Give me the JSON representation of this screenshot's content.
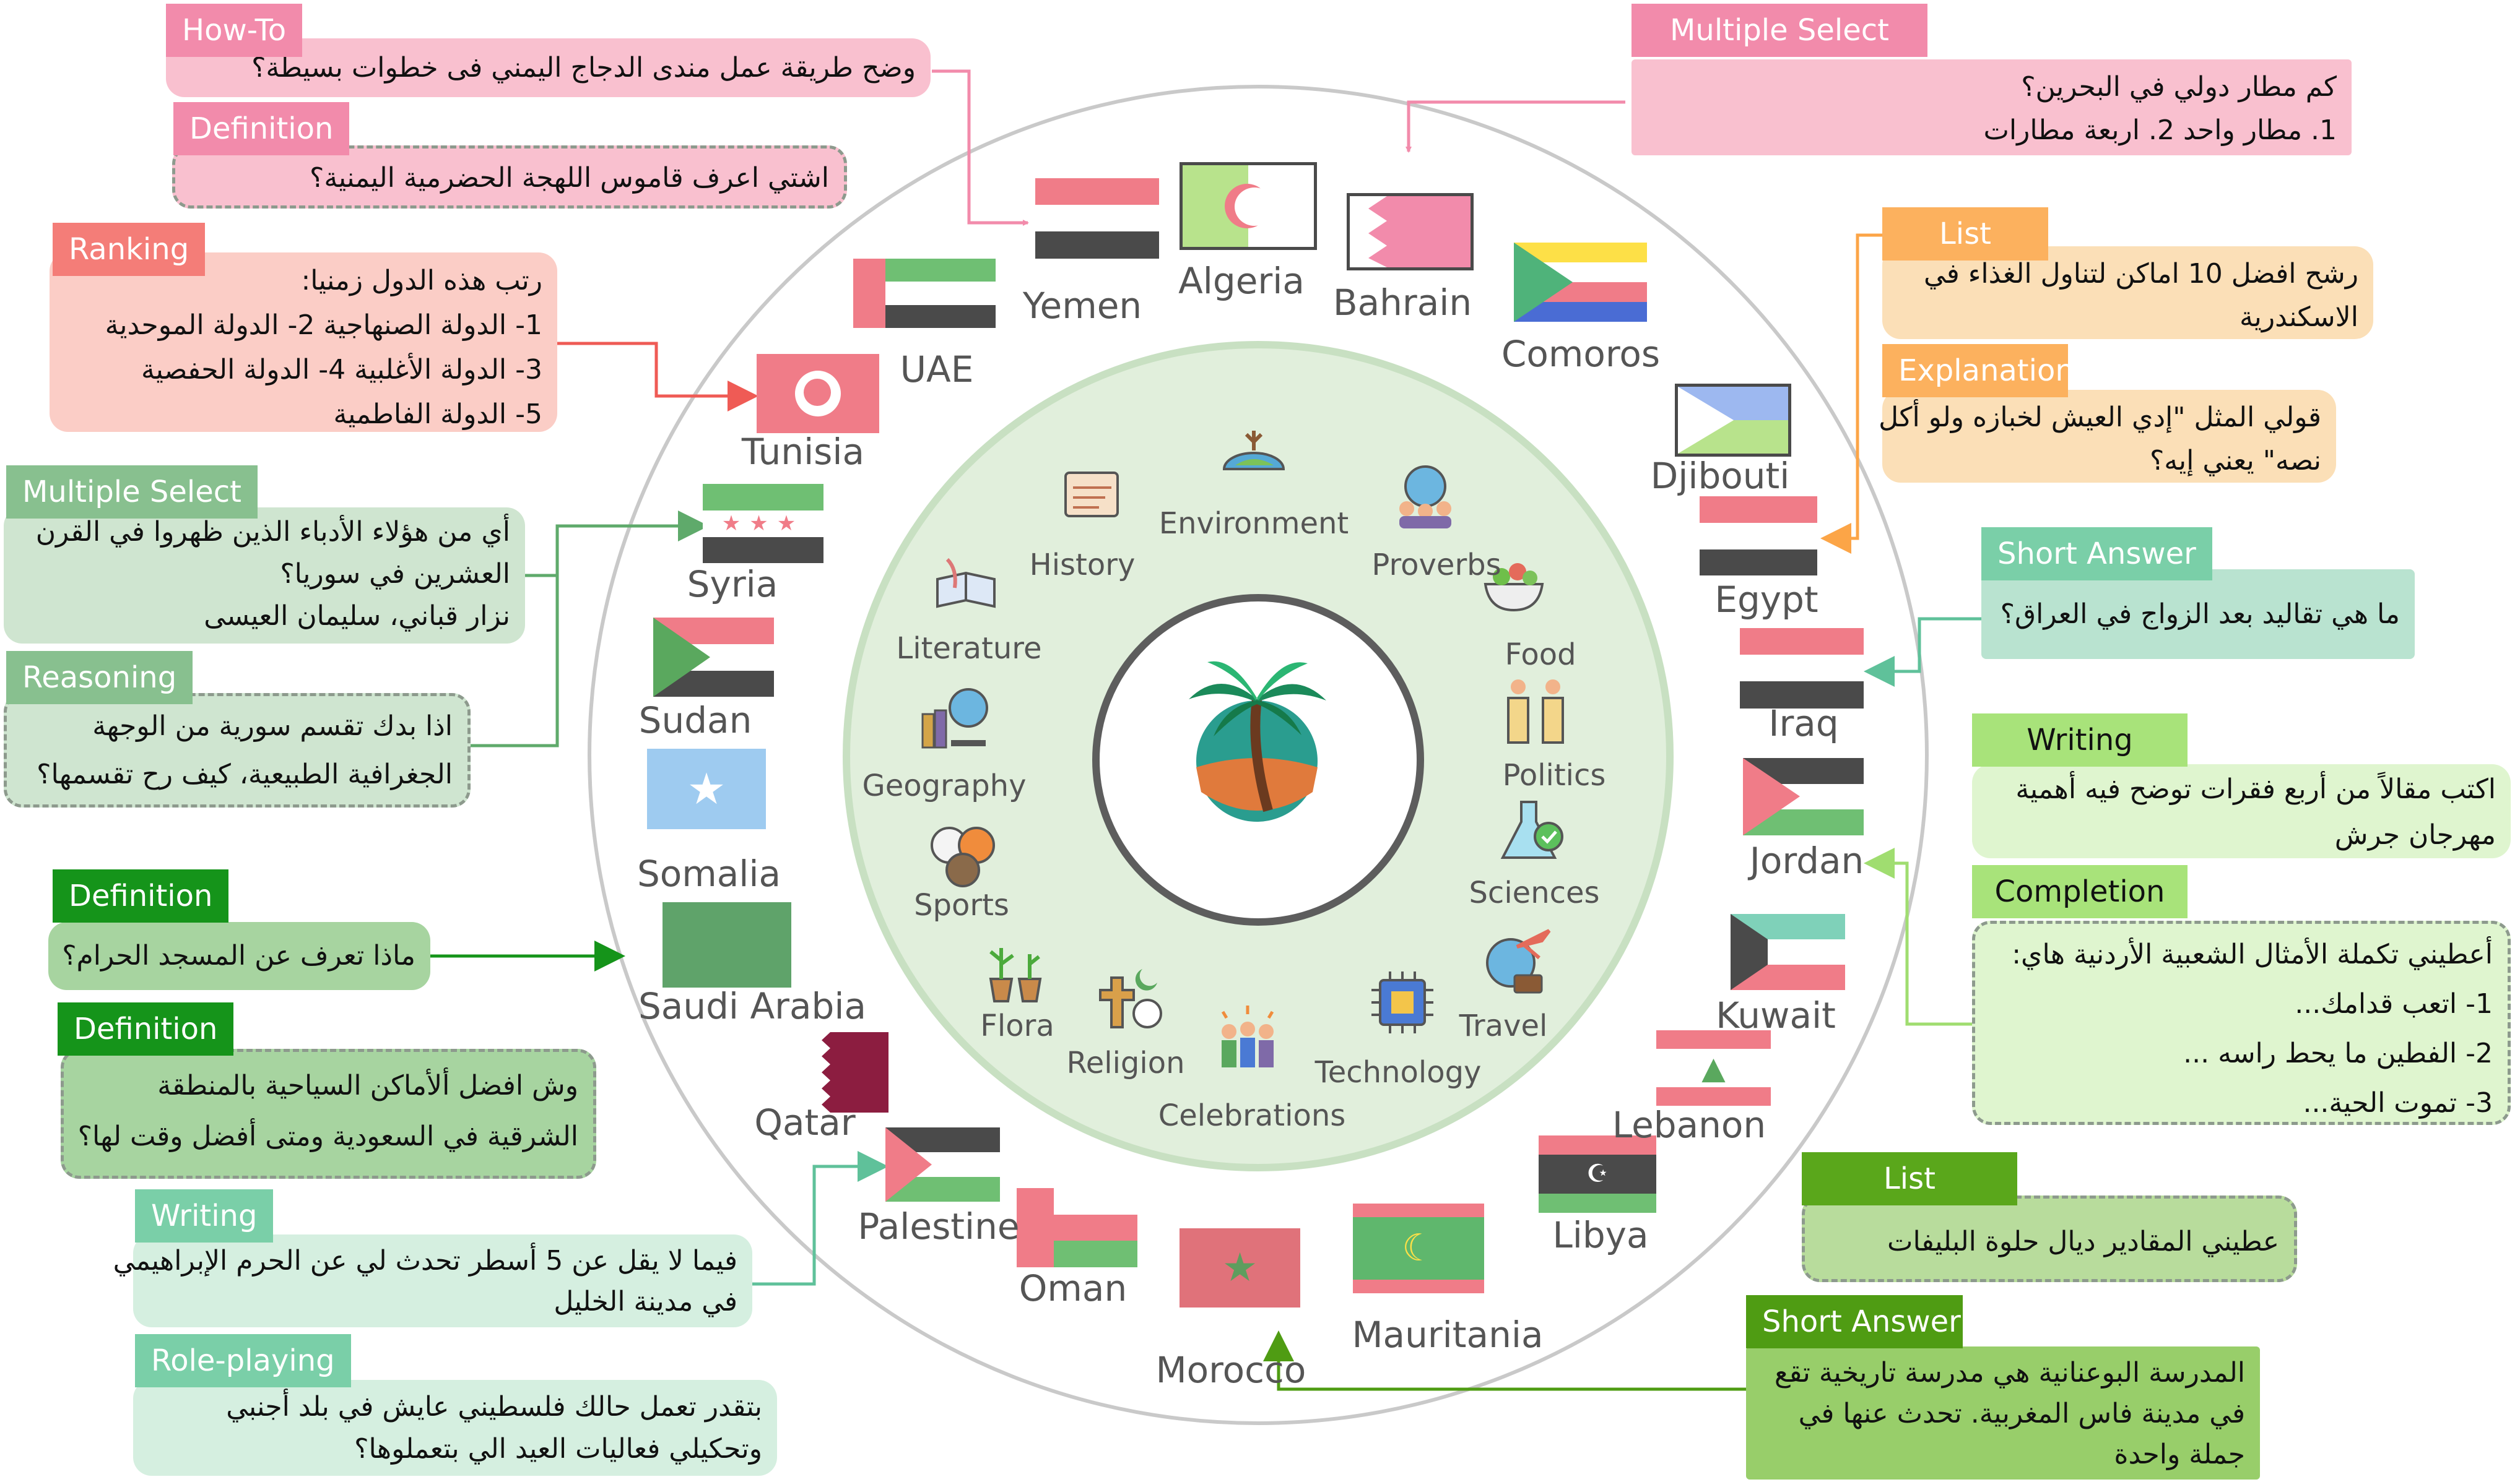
{
  "colors": {
    "pink_tag": "#f28bab",
    "pink_card": "#f9c0cf",
    "salmon_tag": "#f47d78",
    "salmon_card": "#fbcdc6",
    "sage_tag": "#88c08f",
    "sage_card": "#cfe5d0",
    "green_tag": "#15941a",
    "green_card": "#a7d4a0",
    "mint_tag": "#7acfa8",
    "mint_card": "#d5efe0",
    "orange_tag": "#fcb15e",
    "orange_card": "#fbdfb7",
    "lime_tag": "#a8e37a",
    "lime_card": "#dff5cf",
    "leaf_tag": "#5aa71b",
    "leaf_card": "#b8dc9c",
    "olive_tag": "#4f9c13",
    "olive_card": "#98ce6a",
    "ring": "#c9c9c9",
    "inner_fill": "#e1efdc"
  },
  "cards": [
    {
      "id": "howto",
      "tag": "How-To",
      "scheme": "pink",
      "lines": [
        "وضح طريقة عمل مندى الدجاج اليمني فى خطوات بسيطة؟"
      ]
    },
    {
      "id": "definition-yemen",
      "tag": "Definition",
      "scheme": "pink",
      "lines": [
        "اشتي اعرف قاموس اللهجة الحضرمية اليمنية؟"
      ]
    },
    {
      "id": "ranking",
      "tag": "Ranking",
      "scheme": "salmon",
      "lines": [
        "رتب هذه الدول زمنيا:",
        "1- الدولة الصنهاجية 2- الدولة الموحدية",
        "3- الدولة الأغلبية 4- الدولة الحفصية",
        "5- الدولة الفاطمية"
      ]
    },
    {
      "id": "multiselect-syria",
      "tag": "Multiple Select",
      "scheme": "sage",
      "lines": [
        "أي من هؤلاء الأدباء الذين ظهروا في القرن",
        "العشرين في سوريا؟",
        "نزار قباني، سليمان العيسى"
      ]
    },
    {
      "id": "reasoning",
      "tag": "Reasoning",
      "scheme": "sage",
      "lines": [
        "اذا بدك تقسم سورية من الوجهة",
        "الجغرافية الطبيعية، كيف رح تقسمها؟"
      ]
    },
    {
      "id": "definition-mecca",
      "tag": "Definition",
      "scheme": "green",
      "lines": [
        "ماذا تعرف عن المسجد الحرام؟"
      ]
    },
    {
      "id": "definition-saudi",
      "tag": "Definition",
      "scheme": "green",
      "lines": [
        "وش افضل ألأماكن السياحية بالمنطقة",
        "الشرقية في السعودية ومتى أفضل وقت لها؟"
      ]
    },
    {
      "id": "writing-hebron",
      "tag": "Writing",
      "scheme": "mint",
      "lines": [
        "فيما لا يقل عن 5 أسطر تحدث لي عن الحرم الإبراهيمي",
        "في مدينة الخليل"
      ]
    },
    {
      "id": "roleplay",
      "tag": "Role-playing",
      "scheme": "mint",
      "lines": [
        "بتقدر تعمل حالك فلسطيني عايش في بلد أجنبي",
        "وتحكيلي فعاليات العيد الي بتعملوها؟"
      ]
    },
    {
      "id": "multiselect-bahrain",
      "tag": "Multiple Select",
      "scheme": "pink",
      "lines": [
        "كم مطار دولي في البحرين؟",
        "1. مطار واحد 2. اربعة مطارات"
      ]
    },
    {
      "id": "list-alex",
      "tag": "List",
      "scheme": "orange",
      "lines": [
        "رشح افضل 10 اماكن لتناول الغذاء في",
        "الاسكندرية"
      ]
    },
    {
      "id": "explanation",
      "tag": "Explanation",
      "scheme": "orange",
      "lines": [
        "قولي المثل \"إدي العيش لخبازه ولو أكل",
        "نصه\" يعني إيه؟"
      ]
    },
    {
      "id": "shortanswer-iraq",
      "tag": "Short Answer",
      "scheme": "mint",
      "lines": [
        "ما هي تقاليد بعد الزواج في العراق؟"
      ]
    },
    {
      "id": "writing-jerash",
      "tag": "Writing",
      "scheme": "lime",
      "lines": [
        "اكتب مقالاً من أربع فقرات توضح فيه أهمية",
        "مهرجان جرش"
      ]
    },
    {
      "id": "completion",
      "tag": "Completion",
      "scheme": "lime",
      "lines": [
        "أعطيني تكملة الأمثال الشعبية الأردنية هاي:",
        "1- اتعب قدامك...",
        "2- الفطين ما يحط راسه ...",
        "3- تموت الحية..."
      ]
    },
    {
      "id": "list-morocco",
      "tag": "List",
      "scheme": "leaf",
      "lines": [
        "عطيني المقادير ديال حلوة البليفات"
      ]
    },
    {
      "id": "shortanswer-fes",
      "tag": "Short Answer",
      "scheme": "olive",
      "lines": [
        "المدرسة البوعنانية هي مدرسة تاريخية تقع",
        "في مدينة فاس المغربية.  تحدث عنها في",
        "جملة واحدة"
      ]
    }
  ],
  "countries": [
    "Yemen",
    "Algeria",
    "Bahrain",
    "Comoros",
    "UAE",
    "Tunisia",
    "Djibouti",
    "Syria",
    "Egypt",
    "Iraq",
    "Sudan",
    "Jordan",
    "Somalia",
    "Saudi Arabia",
    "Kuwait",
    "Qatar",
    "Lebanon",
    "Palestine",
    "Libya",
    "Oman",
    "Morocco",
    "Mauritania"
  ],
  "topics": [
    {
      "label": "History",
      "icon": "scroll-icon"
    },
    {
      "label": "Environment",
      "icon": "globe-deer-icon"
    },
    {
      "label": "Proverbs",
      "icon": "people-globe-icon"
    },
    {
      "label": "Literature",
      "icon": "book-quill-icon"
    },
    {
      "label": "Food",
      "icon": "salad-icon"
    },
    {
      "label": "Geography",
      "icon": "globe-books-icon"
    },
    {
      "label": "Politics",
      "icon": "podium-icon"
    },
    {
      "label": "Sports",
      "icon": "balls-icon"
    },
    {
      "label": "Sciences",
      "icon": "flask-icon"
    },
    {
      "label": "Flora",
      "icon": "plant-pots-icon"
    },
    {
      "label": "Religion",
      "icon": "religious-symbols-icon"
    },
    {
      "label": "Celebrations",
      "icon": "cheering-people-icon"
    },
    {
      "label": "Technology",
      "icon": "chip-icon"
    },
    {
      "label": "Travel",
      "icon": "plane-globe-icon"
    }
  ],
  "center": {
    "icon": "palm-tree-logo-icon"
  }
}
